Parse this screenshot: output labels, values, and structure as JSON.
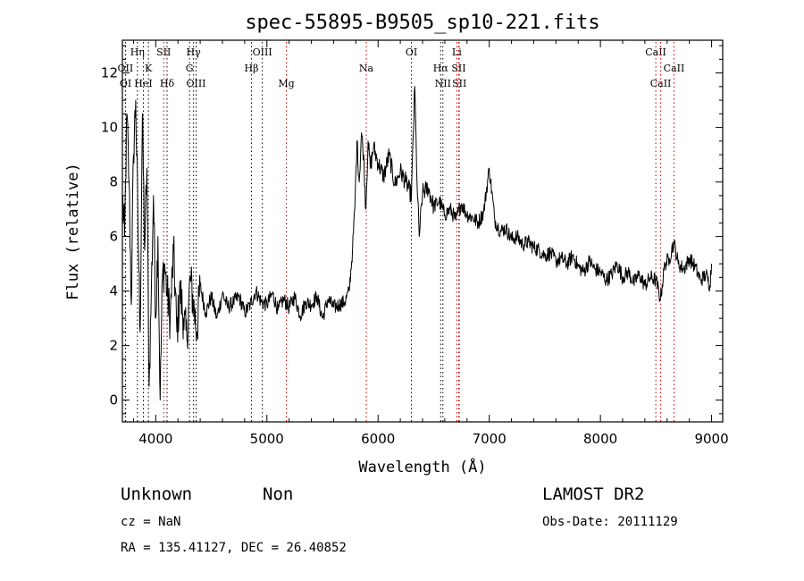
{
  "chart_data": {
    "type": "line",
    "title": "spec-55895-B9505_sp10-221.fits",
    "xlabel": "Wavelength (Å)",
    "ylabel": "Flux (relative)",
    "xlim": [
      3700,
      9100
    ],
    "ylim": [
      -0.8,
      13.2
    ],
    "xticks": [
      4000,
      5000,
      6000,
      7000,
      8000,
      9000
    ],
    "yticks": [
      0,
      2,
      4,
      6,
      8,
      10,
      12
    ],
    "grid": false,
    "series": [
      {
        "color": "#000000",
        "x": [
          3700,
          3720,
          3740,
          3760,
          3780,
          3800,
          3820,
          3840,
          3860,
          3880,
          3900,
          3920,
          3940,
          3960,
          3980,
          4000,
          4020,
          4040,
          4060,
          4080,
          4100,
          4130,
          4160,
          4190,
          4220,
          4250,
          4280,
          4310,
          4340,
          4370,
          4400,
          4450,
          4500,
          4550,
          4600,
          4650,
          4700,
          4750,
          4800,
          4850,
          4900,
          4950,
          5000,
          5050,
          5100,
          5150,
          5200,
          5250,
          5300,
          5350,
          5400,
          5450,
          5500,
          5550,
          5600,
          5650,
          5700,
          5740,
          5770,
          5790,
          5810,
          5830,
          5850,
          5870,
          5890,
          5910,
          5930,
          5960,
          6000,
          6050,
          6100,
          6150,
          6200,
          6250,
          6300,
          6330,
          6350,
          6370,
          6400,
          6450,
          6500,
          6550,
          6600,
          6650,
          6700,
          6720,
          6750,
          6800,
          6850,
          6900,
          6950,
          7000,
          7050,
          7100,
          7150,
          7200,
          7250,
          7300,
          7350,
          7400,
          7450,
          7500,
          7550,
          7600,
          7650,
          7700,
          7750,
          7800,
          7850,
          7900,
          7950,
          8000,
          8050,
          8100,
          8150,
          8200,
          8250,
          8300,
          8350,
          8400,
          8450,
          8500,
          8540,
          8580,
          8620,
          8660,
          8700,
          8750,
          8800,
          8850,
          8900,
          8950,
          8985,
          9000
        ],
        "y": [
          7.5,
          6.0,
          10.5,
          8.0,
          3.5,
          9.0,
          11.0,
          6.5,
          2.5,
          10.5,
          5.5,
          8.5,
          0.5,
          4.0,
          7.5,
          3.0,
          6.0,
          0.0,
          4.5,
          5.0,
          4.0,
          3.0,
          5.5,
          2.5,
          4.0,
          3.0,
          2.2,
          4.5,
          3.5,
          2.5,
          4.2,
          3.2,
          3.8,
          3.0,
          3.9,
          3.4,
          3.6,
          3.8,
          3.2,
          3.5,
          4.0,
          3.6,
          3.5,
          3.9,
          3.3,
          3.7,
          3.4,
          3.8,
          3.1,
          3.6,
          3.5,
          3.8,
          3.0,
          3.7,
          3.4,
          3.5,
          3.6,
          4.0,
          5.5,
          7.0,
          9.5,
          8.0,
          9.8,
          9.0,
          7.0,
          9.5,
          8.5,
          9.3,
          8.7,
          8.2,
          9.0,
          7.9,
          8.4,
          8.0,
          7.5,
          11.5,
          8.0,
          6.0,
          7.6,
          7.8,
          7.1,
          7.3,
          6.8,
          7.0,
          6.6,
          6.9,
          7.2,
          6.8,
          6.7,
          6.5,
          6.9,
          8.5,
          6.6,
          6.2,
          6.3,
          5.9,
          6.0,
          5.7,
          5.8,
          5.6,
          5.5,
          5.3,
          5.4,
          5.1,
          5.2,
          5.0,
          5.3,
          4.9,
          4.7,
          5.1,
          4.8,
          4.7,
          4.4,
          4.6,
          5.0,
          4.5,
          4.7,
          4.3,
          4.6,
          4.2,
          4.5,
          4.4,
          3.7,
          5.0,
          5.2,
          5.8,
          5.0,
          4.8,
          5.2,
          4.9,
          4.4,
          4.6,
          4.2,
          5.0
        ]
      }
    ],
    "line_markers": [
      {
        "label": "OII",
        "x": 3727,
        "row": 1,
        "color": "#000000"
      },
      {
        "label": "OI",
        "x": 3729,
        "row": 2,
        "color": "#000000"
      },
      {
        "label": "Hη",
        "x": 3835,
        "row": 0,
        "color": "#000000"
      },
      {
        "label": "HeI",
        "x": 3889,
        "row": 2,
        "color": "#000000"
      },
      {
        "label": "K",
        "x": 3934,
        "row": 1,
        "color": "#000000"
      },
      {
        "label": "SII",
        "x": 4072,
        "row": 0,
        "color": "#cc0000"
      },
      {
        "label": "Hδ",
        "x": 4102,
        "row": 2,
        "color": "#000000"
      },
      {
        "label": "Hγ",
        "x": 4340,
        "row": 0,
        "color": "#000000"
      },
      {
        "label": "G",
        "x": 4304,
        "row": 1,
        "color": "#000000"
      },
      {
        "label": "OIII",
        "x": 4363,
        "row": 2,
        "color": "#000000"
      },
      {
        "label": "OIII",
        "x": 4959,
        "row": 0,
        "color": "#000000"
      },
      {
        "label": "Hβ",
        "x": 4861,
        "row": 1,
        "color": "#000000"
      },
      {
        "label": "Mg",
        "x": 5175,
        "row": 2,
        "color": "#cc0000"
      },
      {
        "label": "Na",
        "x": 5894,
        "row": 1,
        "color": "#cc0000"
      },
      {
        "label": "OI",
        "x": 6300,
        "row": 0,
        "color": "#000000"
      },
      {
        "label": "Li",
        "x": 6708,
        "row": 0,
        "color": "#cc0000"
      },
      {
        "label": "Hα",
        "x": 6563,
        "row": 1,
        "color": "#000000"
      },
      {
        "label": "SII",
        "x": 6725,
        "row": 1,
        "color": "#cc0000"
      },
      {
        "label": "NII",
        "x": 6583,
        "row": 2,
        "color": "#000000"
      },
      {
        "label": "SII",
        "x": 6731,
        "row": 2,
        "color": "#cc0000"
      },
      {
        "label": "CaII",
        "x": 8498,
        "row": 0,
        "color": "#cc0000"
      },
      {
        "label": "CaII",
        "x": 8662,
        "row": 1,
        "color": "#cc0000"
      },
      {
        "label": "CaII",
        "x": 8542,
        "row": 2,
        "color": "#cc0000"
      }
    ]
  },
  "footer": {
    "class_label": "Unknown",
    "subclass_label": "Non",
    "survey_label": "LAMOST DR2",
    "cz_text": "cz = NaN",
    "obs_date_text": "Obs-Date: 20111129",
    "radec_text": "RA = 135.41127, DEC =  26.40852"
  }
}
